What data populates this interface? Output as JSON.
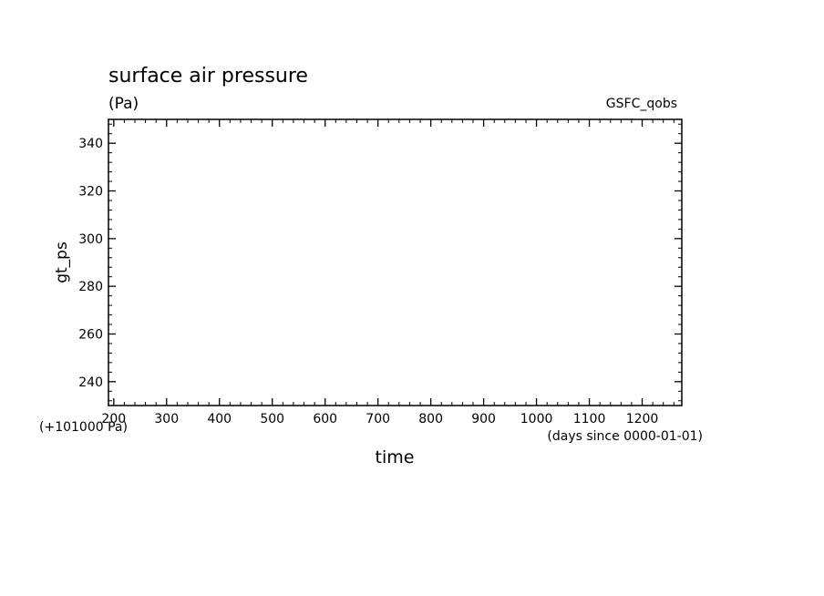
{
  "chart_data": {
    "type": "line",
    "title": "surface air pressure",
    "units": "(Pa)",
    "source_label": "GSFC_qobs",
    "xlabel": "time",
    "x_units_note": "(days since 0000-01-01)",
    "ylabel": "gt_ps",
    "y_offset_note": "(+101000 Pa)",
    "xlim": [
      190,
      1275
    ],
    "ylim": [
      230,
      350
    ],
    "x_ticks": [
      200,
      300,
      400,
      500,
      600,
      700,
      800,
      900,
      1000,
      1100,
      1200
    ],
    "y_ticks": [
      240,
      260,
      280,
      300,
      320,
      340
    ],
    "x_minor_step": 20,
    "y_minor_step": 4,
    "grid": false,
    "series": []
  }
}
